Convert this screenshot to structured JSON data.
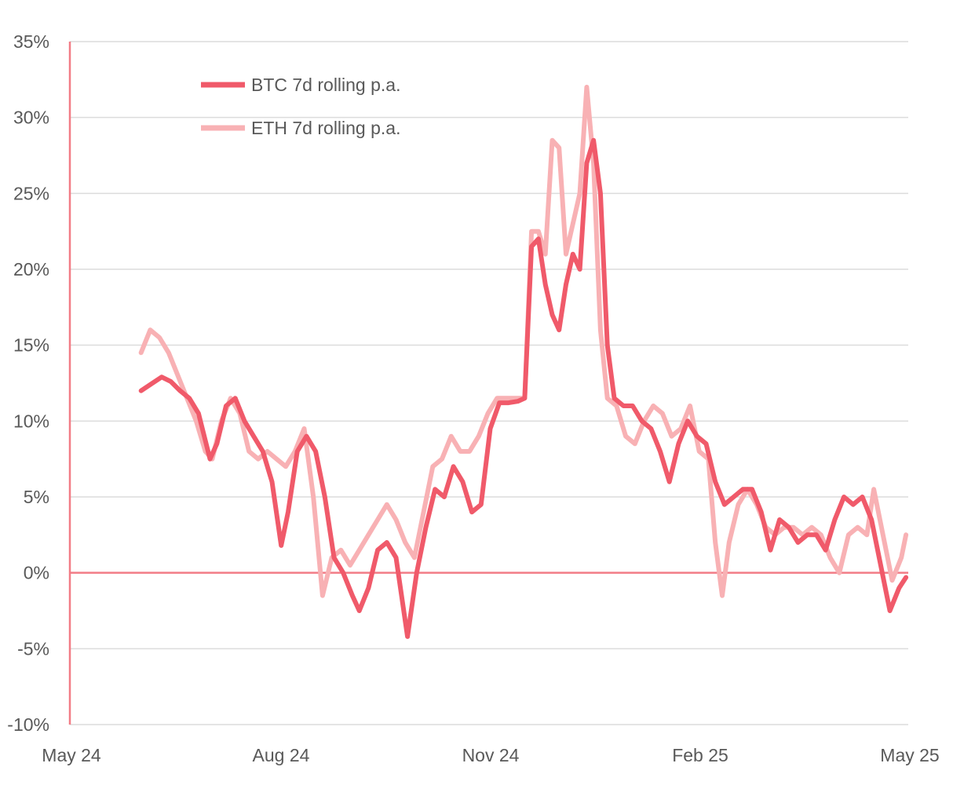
{
  "chart_data": {
    "type": "line",
    "title": "",
    "xlabel": "",
    "ylabel": "",
    "x_ticks": [
      "May 24",
      "Aug 24",
      "Nov 24",
      "Feb 25",
      "May 25"
    ],
    "y_ticks": [
      "35%",
      "30%",
      "25%",
      "20%",
      "15%",
      "10%",
      "5%",
      "0%",
      "-5%",
      "-10%"
    ],
    "ylim": [
      -10,
      35
    ],
    "xlim": [
      "2024-05-01",
      "2025-05-01"
    ],
    "grid": "horizontal",
    "legend_placement": "top-left",
    "colors": {
      "btc": "#f05a6a",
      "eth": "#f8b1b4",
      "axis": "#f27c86",
      "grid": "#dcdcdc"
    },
    "series": [
      {
        "name": "BTC 7d rolling p.a.",
        "points": [
          [
            "2024-06-01",
            12.0
          ],
          [
            "2024-06-06",
            12.5
          ],
          [
            "2024-06-10",
            12.9
          ],
          [
            "2024-06-14",
            12.6
          ],
          [
            "2024-06-18",
            12.0
          ],
          [
            "2024-06-22",
            11.5
          ],
          [
            "2024-06-26",
            10.5
          ],
          [
            "2024-07-01",
            7.5
          ],
          [
            "2024-07-04",
            8.5
          ],
          [
            "2024-07-08",
            11.0
          ],
          [
            "2024-07-12",
            11.5
          ],
          [
            "2024-07-16",
            10.0
          ],
          [
            "2024-07-20",
            9.0
          ],
          [
            "2024-07-24",
            8.0
          ],
          [
            "2024-07-28",
            6.0
          ],
          [
            "2024-08-01",
            1.8
          ],
          [
            "2024-08-04",
            4.0
          ],
          [
            "2024-08-08",
            8.0
          ],
          [
            "2024-08-12",
            9.0
          ],
          [
            "2024-08-16",
            8.0
          ],
          [
            "2024-08-20",
            5.0
          ],
          [
            "2024-08-24",
            1.0
          ],
          [
            "2024-08-28",
            0.0
          ],
          [
            "2024-09-01",
            -1.5
          ],
          [
            "2024-09-04",
            -2.5
          ],
          [
            "2024-09-08",
            -1.0
          ],
          [
            "2024-09-12",
            1.5
          ],
          [
            "2024-09-16",
            2.0
          ],
          [
            "2024-09-20",
            1.0
          ],
          [
            "2024-09-25",
            -4.2
          ],
          [
            "2024-09-29",
            0.0
          ],
          [
            "2024-10-03",
            3.0
          ],
          [
            "2024-10-07",
            5.5
          ],
          [
            "2024-10-11",
            5.0
          ],
          [
            "2024-10-15",
            7.0
          ],
          [
            "2024-10-19",
            6.0
          ],
          [
            "2024-10-23",
            4.0
          ],
          [
            "2024-10-27",
            4.5
          ],
          [
            "2024-10-31",
            9.5
          ],
          [
            "2024-11-04",
            11.2
          ],
          [
            "2024-11-08",
            11.2
          ],
          [
            "2024-11-12",
            11.3
          ],
          [
            "2024-11-15",
            11.5
          ],
          [
            "2024-11-18",
            21.5
          ],
          [
            "2024-11-21",
            22.0
          ],
          [
            "2024-11-24",
            19.0
          ],
          [
            "2024-11-27",
            17.0
          ],
          [
            "2024-11-30",
            16.0
          ],
          [
            "2024-12-03",
            19.0
          ],
          [
            "2024-12-06",
            21.0
          ],
          [
            "2024-12-09",
            20.0
          ],
          [
            "2024-12-12",
            27.0
          ],
          [
            "2024-12-15",
            28.5
          ],
          [
            "2024-12-18",
            25.0
          ],
          [
            "2024-12-21",
            15.0
          ],
          [
            "2024-12-24",
            11.5
          ],
          [
            "2024-12-28",
            11.0
          ],
          [
            "2025-01-01",
            11.0
          ],
          [
            "2025-01-05",
            10.0
          ],
          [
            "2025-01-09",
            9.5
          ],
          [
            "2025-01-13",
            8.0
          ],
          [
            "2025-01-17",
            6.0
          ],
          [
            "2025-01-21",
            8.5
          ],
          [
            "2025-01-25",
            10.0
          ],
          [
            "2025-01-29",
            9.0
          ],
          [
            "2025-02-02",
            8.5
          ],
          [
            "2025-02-06",
            6.0
          ],
          [
            "2025-02-10",
            4.5
          ],
          [
            "2025-02-14",
            5.0
          ],
          [
            "2025-02-18",
            5.5
          ],
          [
            "2025-02-22",
            5.5
          ],
          [
            "2025-02-26",
            4.0
          ],
          [
            "2025-03-02",
            1.5
          ],
          [
            "2025-03-06",
            3.5
          ],
          [
            "2025-03-10",
            3.0
          ],
          [
            "2025-03-14",
            2.0
          ],
          [
            "2025-03-18",
            2.5
          ],
          [
            "2025-03-22",
            2.5
          ],
          [
            "2025-03-26",
            1.5
          ],
          [
            "2025-03-30",
            3.5
          ],
          [
            "2025-04-03",
            5.0
          ],
          [
            "2025-04-07",
            4.5
          ],
          [
            "2025-04-11",
            5.0
          ],
          [
            "2025-04-15",
            3.5
          ],
          [
            "2025-04-19",
            0.5
          ],
          [
            "2025-04-23",
            -2.5
          ],
          [
            "2025-04-27",
            -1.0
          ],
          [
            "2025-04-30",
            -0.3
          ]
        ]
      },
      {
        "name": "ETH 7d rolling p.a.",
        "points": [
          [
            "2024-06-01",
            14.5
          ],
          [
            "2024-06-05",
            16.0
          ],
          [
            "2024-06-09",
            15.5
          ],
          [
            "2024-06-13",
            14.5
          ],
          [
            "2024-06-17",
            13.0
          ],
          [
            "2024-06-21",
            11.5
          ],
          [
            "2024-06-25",
            10.0
          ],
          [
            "2024-06-29",
            8.0
          ],
          [
            "2024-07-02",
            7.5
          ],
          [
            "2024-07-06",
            10.0
          ],
          [
            "2024-07-10",
            11.5
          ],
          [
            "2024-07-14",
            10.5
          ],
          [
            "2024-07-18",
            8.0
          ],
          [
            "2024-07-22",
            7.5
          ],
          [
            "2024-07-26",
            8.0
          ],
          [
            "2024-07-30",
            7.5
          ],
          [
            "2024-08-03",
            7.0
          ],
          [
            "2024-08-07",
            8.0
          ],
          [
            "2024-08-11",
            9.5
          ],
          [
            "2024-08-15",
            5.0
          ],
          [
            "2024-08-19",
            -1.5
          ],
          [
            "2024-08-23",
            1.0
          ],
          [
            "2024-08-27",
            1.5
          ],
          [
            "2024-08-31",
            0.5
          ],
          [
            "2024-09-04",
            1.5
          ],
          [
            "2024-09-08",
            2.5
          ],
          [
            "2024-09-12",
            3.5
          ],
          [
            "2024-09-16",
            4.5
          ],
          [
            "2024-09-20",
            3.5
          ],
          [
            "2024-09-24",
            2.0
          ],
          [
            "2024-09-28",
            1.0
          ],
          [
            "2024-10-02",
            4.0
          ],
          [
            "2024-10-06",
            7.0
          ],
          [
            "2024-10-10",
            7.5
          ],
          [
            "2024-10-14",
            9.0
          ],
          [
            "2024-10-18",
            8.0
          ],
          [
            "2024-10-22",
            8.0
          ],
          [
            "2024-10-26",
            9.0
          ],
          [
            "2024-10-30",
            10.5
          ],
          [
            "2024-11-03",
            11.5
          ],
          [
            "2024-11-07",
            11.5
          ],
          [
            "2024-11-11",
            11.5
          ],
          [
            "2024-11-15",
            11.5
          ],
          [
            "2024-11-18",
            22.5
          ],
          [
            "2024-11-21",
            22.5
          ],
          [
            "2024-11-24",
            21.0
          ],
          [
            "2024-11-27",
            28.5
          ],
          [
            "2024-11-30",
            28.0
          ],
          [
            "2024-12-03",
            21.0
          ],
          [
            "2024-12-06",
            23.0
          ],
          [
            "2024-12-09",
            25.0
          ],
          [
            "2024-12-12",
            32.0
          ],
          [
            "2024-12-15",
            27.0
          ],
          [
            "2024-12-18",
            16.0
          ],
          [
            "2024-12-21",
            11.5
          ],
          [
            "2024-12-25",
            11.0
          ],
          [
            "2024-12-29",
            9.0
          ],
          [
            "2025-01-02",
            8.5
          ],
          [
            "2025-01-06",
            10.0
          ],
          [
            "2025-01-10",
            11.0
          ],
          [
            "2025-01-14",
            10.5
          ],
          [
            "2025-01-18",
            9.0
          ],
          [
            "2025-01-22",
            9.5
          ],
          [
            "2025-01-26",
            11.0
          ],
          [
            "2025-01-30",
            8.0
          ],
          [
            "2025-02-03",
            7.5
          ],
          [
            "2025-02-06",
            2.0
          ],
          [
            "2025-02-09",
            -1.5
          ],
          [
            "2025-02-12",
            2.0
          ],
          [
            "2025-02-16",
            4.5
          ],
          [
            "2025-02-20",
            5.5
          ],
          [
            "2025-02-24",
            4.5
          ],
          [
            "2025-02-28",
            3.0
          ],
          [
            "2025-03-04",
            2.5
          ],
          [
            "2025-03-08",
            3.0
          ],
          [
            "2025-03-12",
            3.0
          ],
          [
            "2025-03-16",
            2.5
          ],
          [
            "2025-03-20",
            3.0
          ],
          [
            "2025-03-24",
            2.5
          ],
          [
            "2025-03-28",
            1.0
          ],
          [
            "2025-04-01",
            0.0
          ],
          [
            "2025-04-05",
            2.5
          ],
          [
            "2025-04-09",
            3.0
          ],
          [
            "2025-04-13",
            2.5
          ],
          [
            "2025-04-16",
            5.5
          ],
          [
            "2025-04-20",
            2.5
          ],
          [
            "2025-04-24",
            -0.5
          ],
          [
            "2025-04-28",
            1.0
          ],
          [
            "2025-04-30",
            2.5
          ]
        ]
      }
    ]
  }
}
